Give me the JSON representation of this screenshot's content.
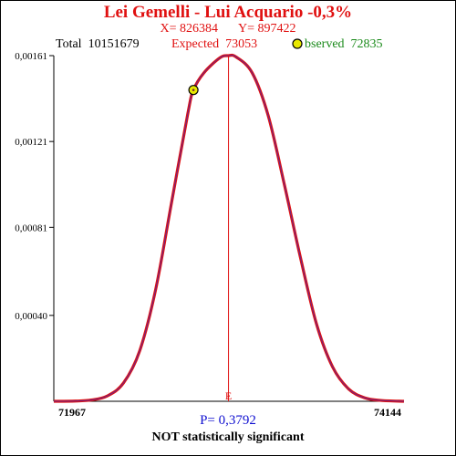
{
  "header": {
    "title": "Lei Gemelli - Lui Acquario  -0,3%",
    "x_label": "X= 826384",
    "y_label": "Y= 897422",
    "total_label": "Total",
    "total_value": "10151679",
    "expected_label": "Expected",
    "expected_value": "73053",
    "observed_label": "bserved",
    "observed_value": "72835"
  },
  "footer": {
    "p_value": "P= 0,3792",
    "verdict": "NOT statistically significant"
  },
  "colors": {
    "curve": "#e01010",
    "curve_inner": "#5a2a9a",
    "expected_line": "#e01010",
    "marker_fill": "#e8e800",
    "observed_text": "#1a8a1a",
    "p_text": "#1010d0"
  },
  "chart_data": {
    "type": "line",
    "title": "Lei Gemelli - Lui Acquario  -0,3%",
    "xlabel": "",
    "ylabel": "",
    "xlim": [
      71967,
      74144
    ],
    "ylim": [
      0,
      0.00161
    ],
    "grid": false,
    "x_tick_labels": [
      "71967",
      "74144"
    ],
    "y_tick_values": [
      0.0004,
      0.00081,
      0.00121,
      0.00161
    ],
    "y_tick_labels": [
      "0,00040",
      "0,00081",
      "0,00121",
      "0,00161"
    ],
    "series": [
      {
        "x": [
          71967,
          72100,
          72200,
          72300,
          72400,
          72500,
          72600,
          72700,
          72800,
          72835,
          72900,
          73000,
          73053,
          73100,
          73200,
          73300,
          73400,
          73500,
          73600,
          73700,
          73800,
          73900,
          74000,
          74144
        ],
        "values": [
          0.0,
          1e-06,
          6e-06,
          2.5e-05,
          8.5e-05,
          0.000233,
          0.00052,
          0.00093,
          0.00134,
          0.00145,
          0.00153,
          0.0016,
          0.00161,
          0.001604,
          0.00153,
          0.00133,
          0.00101,
          0.00067,
          0.00036,
          0.00016,
          5.7e-05,
          1.6e-05,
          4e-06,
          0.0
        ]
      }
    ],
    "expected": {
      "x": 73053,
      "label": "E"
    },
    "observed": {
      "x": 72835,
      "y": 0.00145
    }
  }
}
